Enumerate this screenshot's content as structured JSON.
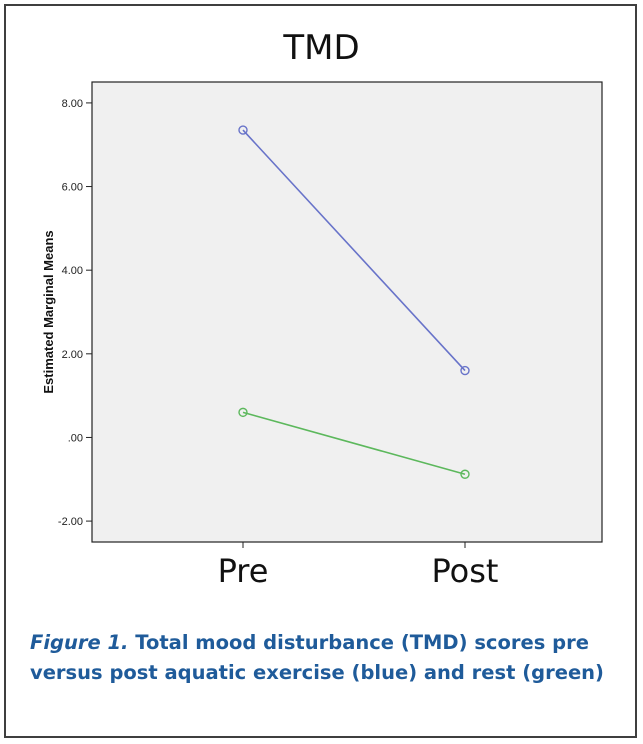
{
  "chart_data": {
    "type": "line",
    "title": "TMD",
    "xlabel": "",
    "ylabel": "Estimated Marginal Means",
    "categories": [
      "Pre",
      "Post"
    ],
    "ylim": [
      -2.5,
      8.5
    ],
    "yticks": [
      "-2.00",
      ".00",
      "2.00",
      "4.00",
      "6.00",
      "8.00"
    ],
    "ytick_values": [
      -2,
      0,
      2,
      4,
      6,
      8
    ],
    "grid": false,
    "series": [
      {
        "values": [
          7.35,
          1.6
        ],
        "color": "#6873c9"
      },
      {
        "values": [
          0.6,
          -0.88
        ],
        "color": "#5cb85c"
      }
    ],
    "plot_background": "#f0f0f0"
  },
  "caption": {
    "label": "Figure 1.",
    "text": "Total mood disturbance (TMD) scores pre versus post aquatic exercise (blue) and rest (green)"
  }
}
